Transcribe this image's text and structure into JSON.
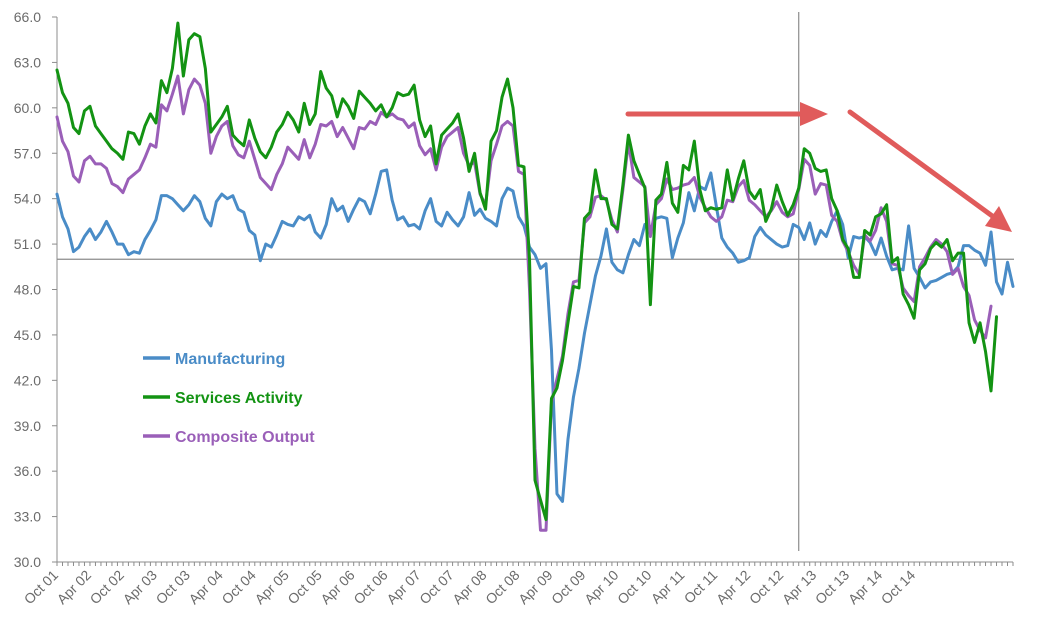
{
  "chart_data": {
    "type": "line",
    "title": "",
    "xlabel": "",
    "ylabel": "",
    "ylim": [
      30.0,
      66.0
    ],
    "yticks": [
      "30.0",
      "33.0",
      "36.0",
      "39.0",
      "42.0",
      "45.0",
      "48.0",
      "51.0",
      "54.0",
      "57.0",
      "60.0",
      "63.0",
      "66.0"
    ],
    "x_start": "2001-10",
    "x_tick_labels": [
      "Oct 01",
      "Apr 02",
      "Oct 02",
      "Apr 03",
      "Oct 03",
      "Apr 04",
      "Oct 04",
      "Apr 05",
      "Oct 05",
      "Apr 06",
      "Oct 06",
      "Apr 07",
      "Oct 07",
      "Apr 08",
      "Oct 08",
      "Apr 09",
      "Oct 09",
      "Apr 10",
      "Oct 10",
      "Apr 11",
      "Oct 11",
      "Apr 12",
      "Oct 12",
      "Apr 13",
      "Oct 13",
      "Apr 14",
      "Oct 14"
    ],
    "reference_line_y": 50.0,
    "vertical_marker_x": "Jan 13",
    "grid": false,
    "legend_position": "left-lower",
    "series": [
      {
        "name": "Manufacturing",
        "color": "#4A8CC7",
        "values": [
          54.3,
          52.8,
          52.0,
          50.5,
          50.8,
          51.5,
          52.0,
          51.3,
          51.8,
          52.5,
          51.8,
          51.0,
          51.0,
          50.3,
          50.5,
          50.4,
          51.3,
          51.9,
          52.6,
          54.2,
          54.2,
          54.0,
          53.6,
          53.2,
          53.6,
          54.2,
          53.8,
          52.7,
          52.2,
          53.8,
          54.3,
          54.0,
          54.2,
          53.3,
          53.1,
          51.9,
          51.6,
          49.9,
          51.0,
          50.8,
          51.6,
          52.5,
          52.3,
          52.2,
          52.8,
          52.6,
          52.9,
          51.8,
          51.4,
          52.3,
          54.0,
          53.2,
          53.5,
          52.5,
          53.3,
          54.0,
          53.8,
          53.0,
          54.3,
          55.8,
          55.9,
          53.9,
          52.6,
          52.8,
          52.2,
          52.3,
          52.0,
          53.2,
          54.0,
          52.5,
          52.2,
          53.1,
          52.6,
          52.2,
          52.8,
          54.4,
          52.9,
          53.3,
          52.7,
          52.5,
          52.2,
          54.0,
          54.7,
          54.5,
          52.8,
          52.2,
          50.8,
          50.3,
          49.4,
          49.7,
          44.0,
          34.5,
          34.0,
          38.1,
          40.9,
          42.8,
          45.1,
          47.0,
          48.9,
          50.2,
          52.0,
          49.8,
          49.3,
          49.1,
          50.3,
          51.3,
          50.9,
          52.3,
          52.0,
          52.7,
          52.8,
          52.7,
          50.1,
          51.4,
          52.4,
          54.4,
          53.2,
          54.8,
          54.6,
          55.7,
          53.5,
          51.4,
          50.8,
          50.4,
          49.8,
          49.9,
          50.1,
          51.5,
          52.1,
          51.6,
          51.3,
          51.0,
          50.8,
          50.9,
          52.3,
          52.1,
          51.3,
          52.4,
          51.0,
          51.9,
          51.5,
          52.5,
          53.2,
          52.3,
          50.1,
          51.5,
          51.4,
          51.5,
          51.1,
          50.3,
          51.4,
          50.2,
          49.3,
          49.4,
          49.3,
          52.2,
          49.4,
          48.8,
          48.1,
          48.5,
          48.6,
          48.8,
          49.0,
          49.1,
          49.5,
          50.9,
          50.9,
          50.6,
          50.4,
          49.6,
          51.8,
          48.5,
          47.7,
          49.8,
          48.2
        ]
      },
      {
        "name": "Services Activity",
        "color": "#139313",
        "values": [
          62.5,
          61.0,
          60.3,
          58.7,
          58.3,
          59.8,
          60.1,
          58.8,
          58.3,
          57.8,
          57.3,
          57.0,
          56.6,
          58.4,
          58.3,
          57.6,
          58.8,
          59.6,
          59.0,
          61.8,
          61.0,
          62.6,
          65.6,
          62.1,
          64.5,
          64.9,
          64.7,
          62.6,
          58.4,
          58.9,
          59.4,
          60.1,
          58.2,
          57.8,
          57.5,
          59.2,
          58.0,
          57.1,
          56.7,
          57.4,
          58.4,
          58.9,
          59.7,
          59.2,
          58.4,
          60.3,
          58.9,
          59.6,
          62.4,
          61.3,
          60.8,
          59.4,
          60.6,
          60.1,
          59.3,
          61.1,
          60.7,
          60.3,
          59.8,
          60.2,
          59.4,
          60.0,
          61.0,
          60.8,
          60.9,
          61.5,
          59.2,
          58.1,
          58.8,
          56.3,
          58.2,
          58.6,
          59.0,
          59.6,
          58.0,
          55.8,
          57.0,
          54.4,
          53.3,
          57.8,
          58.5,
          60.7,
          61.9,
          60.0,
          56.2,
          56.1,
          50.0,
          35.4,
          34.1,
          32.8,
          40.8,
          41.5,
          43.3,
          45.8,
          48.2,
          48.1,
          52.7,
          53.1,
          55.9,
          54.0,
          54.0,
          52.3,
          52.0,
          54.9,
          58.2,
          56.5,
          55.6,
          54.7,
          47.0,
          53.9,
          54.3,
          56.4,
          53.7,
          53.1,
          56.2,
          55.9,
          57.8,
          54.6,
          53.2,
          53.4,
          53.3,
          53.4,
          55.9,
          53.9,
          55.3,
          56.5,
          54.5,
          54.0,
          54.6,
          52.5,
          53.3,
          54.9,
          53.8,
          52.9,
          53.6,
          54.7,
          57.3,
          57.0,
          56.0,
          55.8,
          55.9,
          54.0,
          53.2,
          51.3,
          50.7,
          48.8,
          48.8,
          51.9,
          51.6,
          52.8,
          53.0,
          53.6,
          49.8,
          50.1,
          47.7,
          47.0,
          46.1,
          49.3,
          49.7,
          50.7,
          51.1,
          50.8,
          51.3,
          49.9,
          50.4,
          50.4,
          45.8,
          44.5,
          45.8,
          43.9,
          41.3,
          46.2
        ]
      },
      {
        "name": "Composite Output",
        "color": "#9A5FB8",
        "values": [
          59.4,
          57.8,
          57.1,
          55.5,
          55.1,
          56.5,
          56.8,
          56.3,
          56.3,
          56.0,
          55.0,
          54.8,
          54.4,
          55.3,
          55.6,
          55.9,
          56.7,
          57.6,
          57.4,
          60.2,
          59.8,
          60.9,
          62.1,
          59.6,
          61.2,
          61.9,
          61.5,
          60.3,
          57.0,
          58.1,
          58.8,
          59.1,
          57.5,
          56.9,
          56.7,
          57.8,
          56.6,
          55.4,
          55.0,
          54.6,
          55.6,
          56.3,
          57.4,
          57.0,
          56.6,
          57.9,
          56.7,
          57.6,
          58.9,
          58.8,
          59.1,
          58.1,
          58.7,
          58.0,
          57.3,
          58.7,
          58.6,
          59.1,
          58.9,
          59.7,
          59.4,
          59.6,
          59.3,
          59.2,
          58.7,
          59.0,
          57.5,
          56.9,
          57.3,
          55.9,
          57.4,
          58.1,
          58.4,
          58.7,
          57.0,
          56.2,
          56.4,
          54.3,
          53.6,
          56.5,
          57.6,
          58.8,
          59.1,
          58.8,
          55.8,
          55.6,
          48.0,
          37.5,
          32.1,
          32.1,
          40.5,
          42.1,
          43.6,
          46.4,
          48.5,
          48.6,
          52.4,
          52.8,
          54.1,
          54.2,
          53.9,
          52.6,
          51.8,
          54.6,
          57.7,
          55.4,
          55.1,
          54.8,
          51.5,
          53.6,
          54.0,
          55.3,
          54.6,
          54.7,
          54.9,
          55.0,
          55.4,
          54.1,
          53.4,
          52.8,
          52.5,
          52.8,
          53.9,
          53.8,
          54.8,
          55.2,
          53.9,
          53.6,
          53.2,
          52.8,
          53.2,
          53.8,
          53.1,
          52.8,
          53.0,
          54.6,
          56.6,
          56.2,
          54.3,
          55.0,
          54.9,
          52.9,
          52.5,
          51.2,
          50.5,
          49.6,
          49.0,
          51.6,
          51.2,
          51.9,
          53.4,
          52.5,
          49.7,
          49.6,
          48.1,
          47.6,
          47.2,
          49.5,
          50.1,
          50.8,
          51.3,
          51.0,
          50.5,
          49.0,
          49.4,
          48.2,
          47.6,
          46.0,
          45.3,
          44.8,
          46.9
        ]
      }
    ]
  }
}
